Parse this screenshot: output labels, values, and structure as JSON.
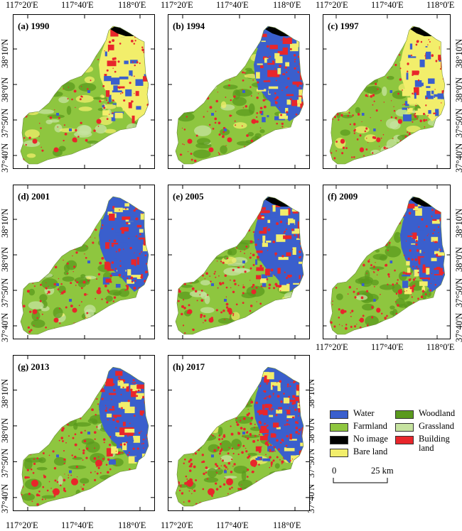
{
  "lon_labels": [
    "117°20'E",
    "117°40'E",
    "118°0'E"
  ],
  "lat_labels": [
    "38°10'N",
    "38°0'N",
    "37°50'N",
    "37°40'N"
  ],
  "panels": [
    {
      "label": "(a) 1990",
      "year": 1990
    },
    {
      "label": "(b) 1994",
      "year": 1994
    },
    {
      "label": "(c) 1997",
      "year": 1997
    },
    {
      "label": "(d) 2001",
      "year": 2001
    },
    {
      "label": "(e) 2005",
      "year": 2005
    },
    {
      "label": "(f) 2009",
      "year": 2009
    },
    {
      "label": "(g) 2013",
      "year": 2013
    },
    {
      "label": "(h) 2017",
      "year": 2017
    }
  ],
  "legend": [
    {
      "label": "Water",
      "color": "#3a5fcd"
    },
    {
      "label": "Woodland",
      "color": "#5a9a1e"
    },
    {
      "label": "Farmland",
      "color": "#8ec63f"
    },
    {
      "label": "Grassland",
      "color": "#c6e3a0"
    },
    {
      "label": "No image",
      "color": "#000000"
    },
    {
      "label": "Building land",
      "color": "#e8262b"
    },
    {
      "label": "Bare land",
      "color": "#f2ee6b"
    }
  ],
  "scale_bar": {
    "start": "0",
    "end": "25 km"
  },
  "colors": {
    "water": "#3a5fcd",
    "woodland": "#5a9a1e",
    "farmland": "#8ec63f",
    "grassland": "#c6e3a0",
    "noimage": "#000000",
    "building": "#e8262b",
    "bare": "#f2ee6b"
  }
}
